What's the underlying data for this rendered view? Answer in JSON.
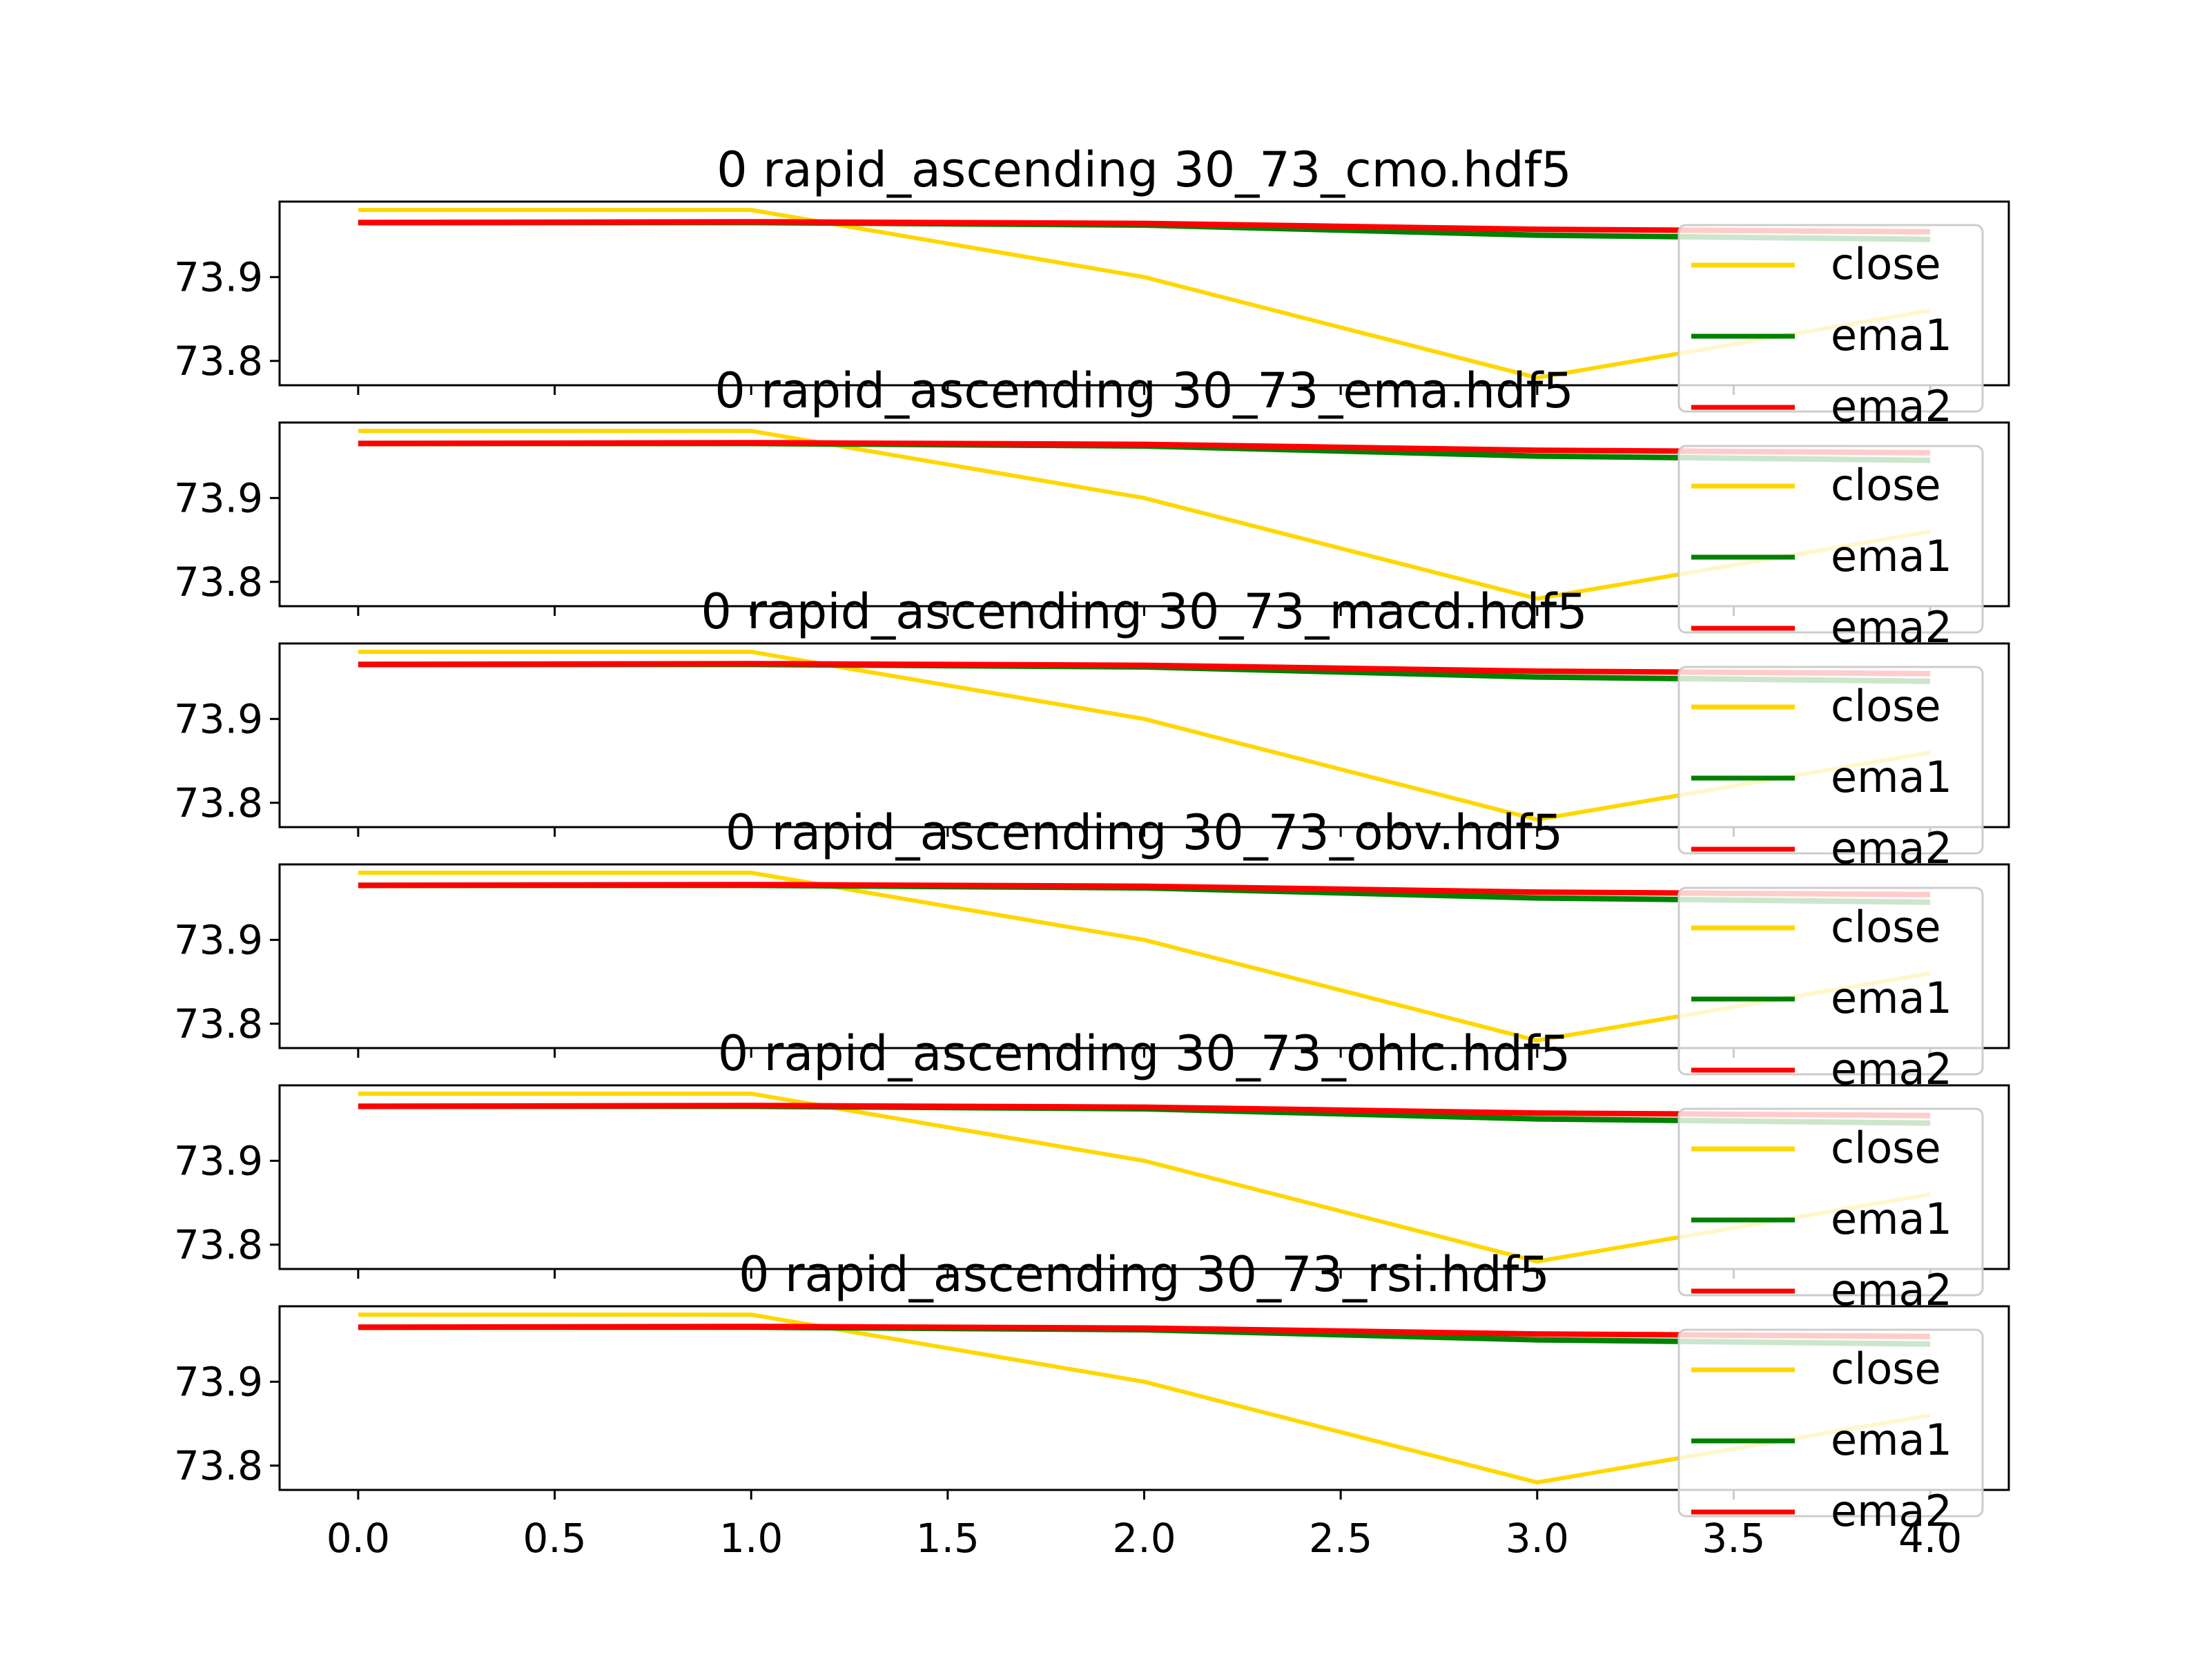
{
  "colors": {
    "close": "#ffd700",
    "ema1": "#008000",
    "ema2": "#ff0000",
    "axes": "#000000",
    "background": "#ffffff"
  },
  "chart_data": [
    {
      "type": "line",
      "title": "0 rapid_ascending 30_73_cmo.hdf5",
      "x": [
        0,
        1,
        2,
        3,
        4
      ],
      "series": [
        {
          "name": "close",
          "values": [
            73.98,
            73.98,
            73.9,
            73.78,
            73.86
          ]
        },
        {
          "name": "ema1",
          "values": [
            73.965,
            73.965,
            73.962,
            73.95,
            73.945
          ]
        },
        {
          "name": "ema2",
          "values": [
            73.965,
            73.966,
            73.964,
            73.957,
            73.954
          ]
        }
      ],
      "xlim": [
        -0.2,
        4.2
      ],
      "ylim": [
        73.771,
        73.99
      ],
      "yticks": [
        73.8,
        73.9
      ],
      "legend": "right",
      "grid": false
    },
    {
      "type": "line",
      "title": "0 rapid_ascending 30_73_ema.hdf5",
      "x": [
        0,
        1,
        2,
        3,
        4
      ],
      "series": [
        {
          "name": "close",
          "values": [
            73.98,
            73.98,
            73.9,
            73.78,
            73.86
          ]
        },
        {
          "name": "ema1",
          "values": [
            73.965,
            73.965,
            73.962,
            73.95,
            73.945
          ]
        },
        {
          "name": "ema2",
          "values": [
            73.965,
            73.966,
            73.964,
            73.957,
            73.954
          ]
        }
      ],
      "xlim": [
        -0.2,
        4.2
      ],
      "ylim": [
        73.771,
        73.99
      ],
      "yticks": [
        73.8,
        73.9
      ],
      "legend": "right",
      "grid": false
    },
    {
      "type": "line",
      "title": "0 rapid_ascending 30_73_macd.hdf5",
      "x": [
        0,
        1,
        2,
        3,
        4
      ],
      "series": [
        {
          "name": "close",
          "values": [
            73.98,
            73.98,
            73.9,
            73.78,
            73.86
          ]
        },
        {
          "name": "ema1",
          "values": [
            73.965,
            73.965,
            73.962,
            73.95,
            73.945
          ]
        },
        {
          "name": "ema2",
          "values": [
            73.965,
            73.966,
            73.964,
            73.957,
            73.954
          ]
        }
      ],
      "xlim": [
        -0.2,
        4.2
      ],
      "ylim": [
        73.771,
        73.99
      ],
      "yticks": [
        73.8,
        73.9
      ],
      "legend": "right",
      "grid": false
    },
    {
      "type": "line",
      "title": "0 rapid_ascending 30_73_obv.hdf5",
      "x": [
        0,
        1,
        2,
        3,
        4
      ],
      "series": [
        {
          "name": "close",
          "values": [
            73.98,
            73.98,
            73.9,
            73.78,
            73.86
          ]
        },
        {
          "name": "ema1",
          "values": [
            73.965,
            73.965,
            73.962,
            73.95,
            73.945
          ]
        },
        {
          "name": "ema2",
          "values": [
            73.965,
            73.966,
            73.964,
            73.957,
            73.954
          ]
        }
      ],
      "xlim": [
        -0.2,
        4.2
      ],
      "ylim": [
        73.771,
        73.99
      ],
      "yticks": [
        73.8,
        73.9
      ],
      "legend": "right",
      "grid": false
    },
    {
      "type": "line",
      "title": "0 rapid_ascending 30_73_ohlc.hdf5",
      "x": [
        0,
        1,
        2,
        3,
        4
      ],
      "series": [
        {
          "name": "close",
          "values": [
            73.98,
            73.98,
            73.9,
            73.78,
            73.86
          ]
        },
        {
          "name": "ema1",
          "values": [
            73.965,
            73.965,
            73.962,
            73.95,
            73.945
          ]
        },
        {
          "name": "ema2",
          "values": [
            73.965,
            73.966,
            73.964,
            73.957,
            73.954
          ]
        }
      ],
      "xlim": [
        -0.2,
        4.2
      ],
      "ylim": [
        73.771,
        73.99
      ],
      "yticks": [
        73.8,
        73.9
      ],
      "legend": "right",
      "grid": false
    },
    {
      "type": "line",
      "title": "0 rapid_ascending 30_73_rsi.hdf5",
      "x": [
        0,
        1,
        2,
        3,
        4
      ],
      "series": [
        {
          "name": "close",
          "values": [
            73.98,
            73.98,
            73.9,
            73.78,
            73.86
          ]
        },
        {
          "name": "ema1",
          "values": [
            73.965,
            73.965,
            73.962,
            73.95,
            73.945
          ]
        },
        {
          "name": "ema2",
          "values": [
            73.965,
            73.966,
            73.964,
            73.957,
            73.954
          ]
        }
      ],
      "xlim": [
        -0.2,
        4.2
      ],
      "ylim": [
        73.771,
        73.99
      ],
      "yticks": [
        73.8,
        73.9
      ],
      "xticks": [
        0.0,
        0.5,
        1.0,
        1.5,
        2.0,
        2.5,
        3.0,
        3.5,
        4.0
      ],
      "legend": "right",
      "grid": false
    }
  ]
}
